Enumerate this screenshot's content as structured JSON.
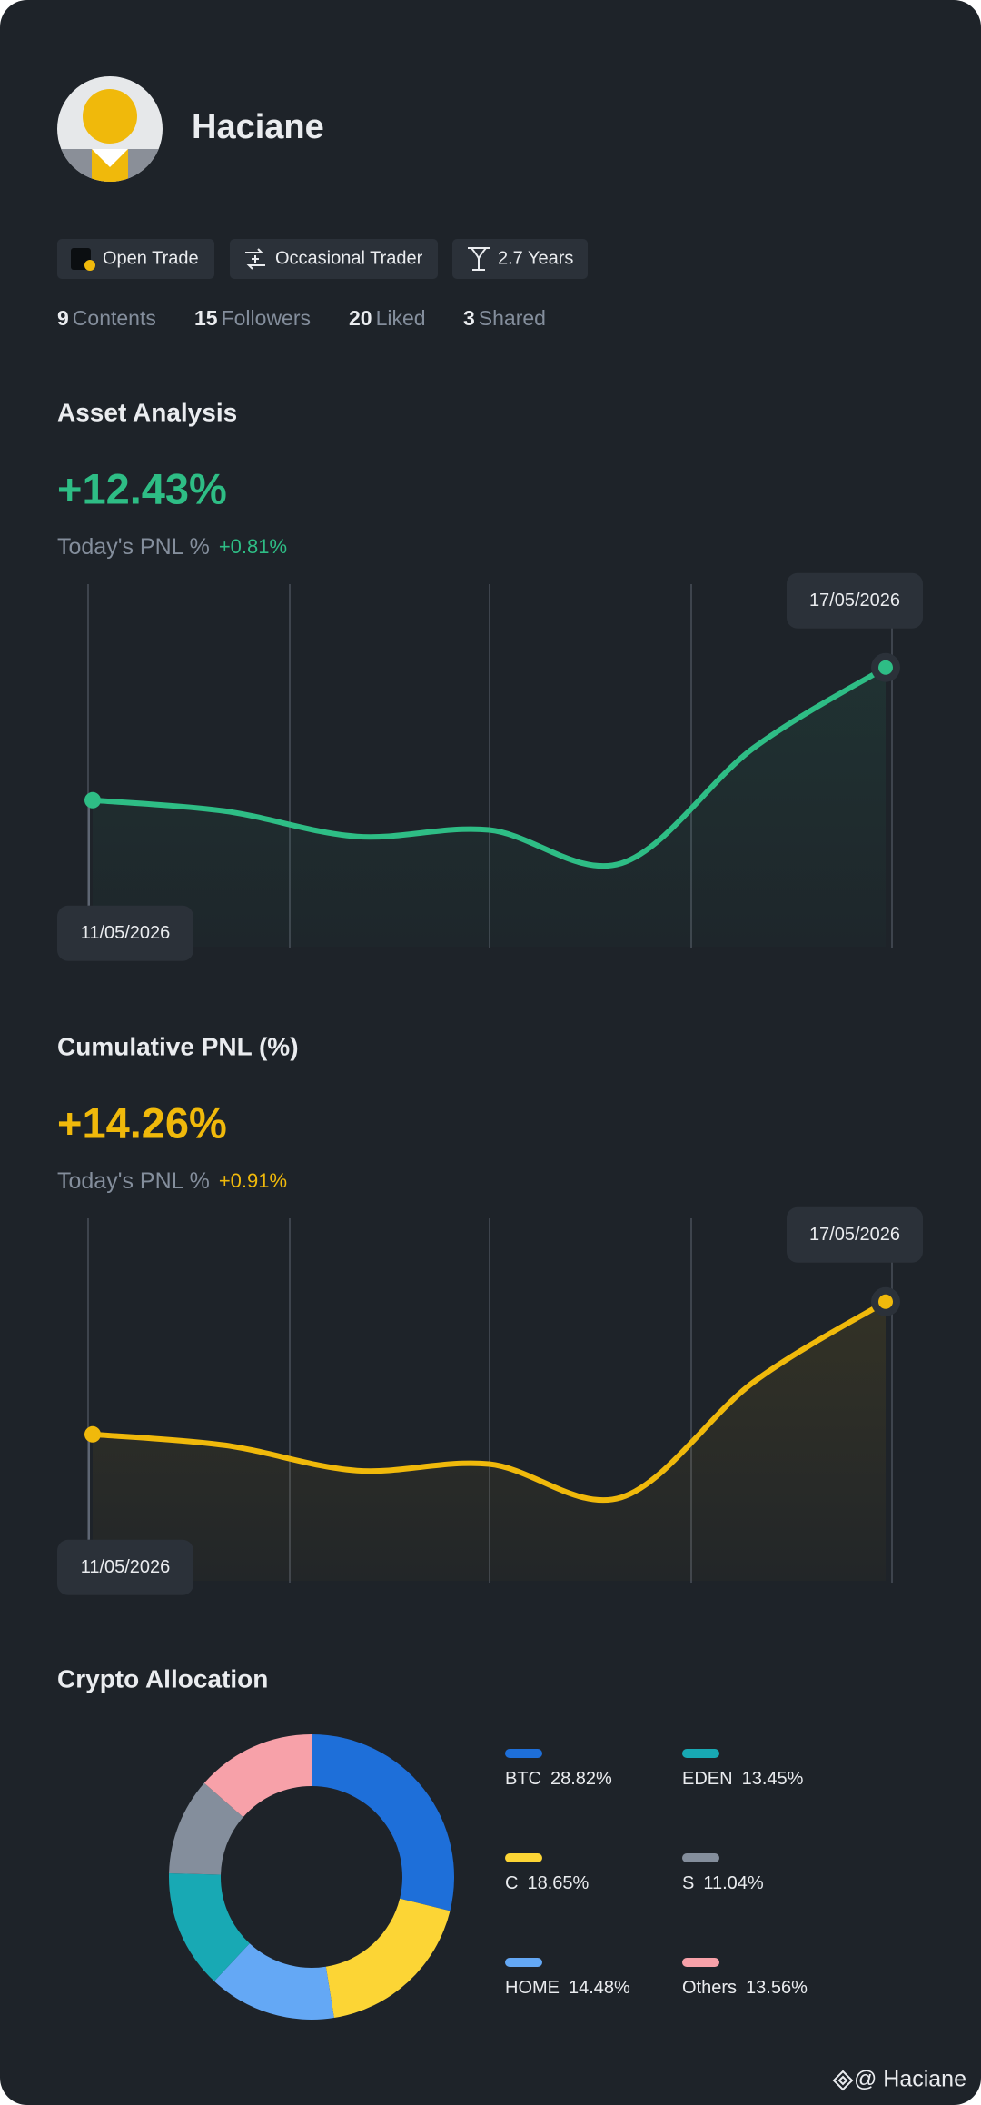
{
  "profile": {
    "name": "Haciane",
    "tags": [
      "Open Trade",
      "Occasional Trader",
      "2.7 Years"
    ],
    "stats": [
      {
        "value": 9,
        "label": "Contents"
      },
      {
        "value": 15,
        "label": "Followers"
      },
      {
        "value": 20,
        "label": "Liked"
      },
      {
        "value": 3,
        "label": "Shared"
      }
    ]
  },
  "chart_data": [
    {
      "type": "line",
      "title": "Asset Analysis",
      "headline": "+12.43%",
      "pnl_label": "Today's PNL %",
      "pnl_change": "+0.81%",
      "x": [
        "11/05/2026",
        null,
        null,
        null,
        null,
        null,
        "17/05/2026"
      ],
      "series": [
        {
          "color": "#2ebd85",
          "values": [
            40.4,
            37.4,
            30.4,
            32.2,
            23.0,
            54.8,
            77.0
          ]
        }
      ],
      "ylim": [
        0,
        100
      ]
    },
    {
      "type": "line",
      "title": "Cumulative PNL (%)",
      "headline": "+14.26%",
      "pnl_label": "Today's PNL %",
      "pnl_change": "+0.91%",
      "x": [
        "11/05/2026",
        null,
        null,
        null,
        null,
        null,
        "17/05/2026"
      ],
      "series": [
        {
          "color": "#f0b90b",
          "values": [
            40.4,
            37.4,
            30.4,
            32.2,
            23.0,
            54.8,
            77.0
          ]
        }
      ],
      "ylim": [
        0,
        100
      ]
    },
    {
      "type": "pie",
      "title": "Crypto Allocation",
      "categories": [
        "BTC",
        "C",
        "HOME",
        "EDEN",
        "S",
        "Others"
      ],
      "values": [
        28.82,
        18.65,
        14.48,
        13.45,
        11.04,
        13.56
      ],
      "value_labels": [
        "28.82%",
        "18.65%",
        "14.48%",
        "13.45%",
        "11.04%",
        "13.56%"
      ],
      "colors": [
        "#1e6fd9",
        "#fcd535",
        "#64a8f5",
        "#18a9b4",
        "#848e9c",
        "#f7a1a9"
      ]
    }
  ],
  "watermark": "@ Haciane"
}
